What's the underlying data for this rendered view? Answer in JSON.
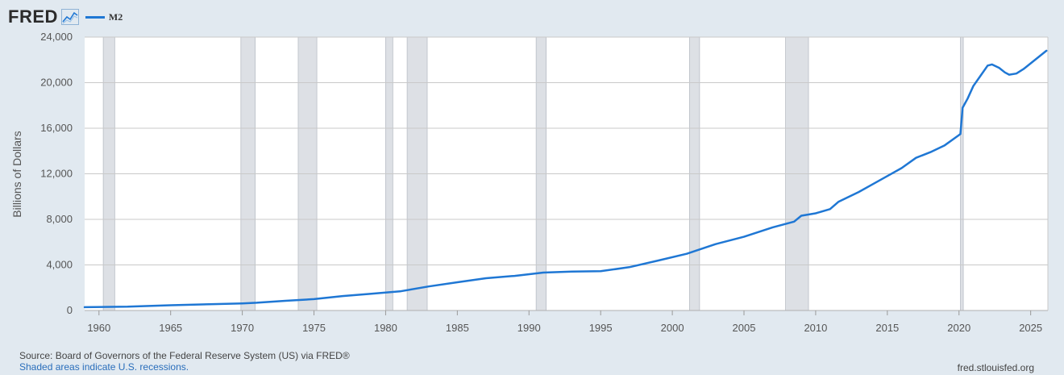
{
  "header": {
    "logo_text": "FRED",
    "logo_icon": "chart-line-icon",
    "legend_label": "M2",
    "legend_color": "#1f77d4"
  },
  "footer": {
    "source": "Source: Board of Governors of the Federal Reserve System (US) via FRED®",
    "note": "Shaded areas indicate U.S. recessions.",
    "site": "fred.stlouisfed.org"
  },
  "chart_data": {
    "type": "line",
    "title": "",
    "xlabel": "",
    "ylabel": "Billions of Dollars",
    "xlim": [
      1959,
      2026.2
    ],
    "ylim": [
      0,
      24000
    ],
    "x_ticks": [
      1960,
      1965,
      1970,
      1975,
      1980,
      1985,
      1990,
      1995,
      2000,
      2005,
      2010,
      2015,
      2020,
      2025
    ],
    "y_ticks": [
      0,
      4000,
      8000,
      12000,
      16000,
      20000,
      24000
    ],
    "y_tick_labels": [
      "0",
      "4,000",
      "8,000",
      "12,000",
      "16,000",
      "20,000",
      "24,000"
    ],
    "grid": true,
    "legend_position": "top-left",
    "line_color": "#1f77d4",
    "recession_color": "#dde0e5",
    "recessions": [
      [
        1960.3,
        1961.1
      ],
      [
        1969.9,
        1970.9
      ],
      [
        1973.9,
        1975.2
      ],
      [
        1980.0,
        1980.5
      ],
      [
        1981.5,
        1982.9
      ],
      [
        1990.5,
        1991.2
      ],
      [
        2001.2,
        2001.9
      ],
      [
        2007.9,
        2009.5
      ],
      [
        2020.1,
        2020.3
      ]
    ],
    "series": [
      {
        "name": "M2",
        "points": [
          [
            1959,
            290
          ],
          [
            1962,
            330
          ],
          [
            1965,
            460
          ],
          [
            1968,
            560
          ],
          [
            1970,
            620
          ],
          [
            1971,
            680
          ],
          [
            1973,
            850
          ],
          [
            1975,
            1000
          ],
          [
            1977,
            1270
          ],
          [
            1979,
            1470
          ],
          [
            1981,
            1680
          ],
          [
            1983,
            2110
          ],
          [
            1985,
            2480
          ],
          [
            1987,
            2830
          ],
          [
            1989,
            3040
          ],
          [
            1991,
            3330
          ],
          [
            1993,
            3420
          ],
          [
            1995,
            3450
          ],
          [
            1997,
            3800
          ],
          [
            1999,
            4380
          ],
          [
            2001,
            4980
          ],
          [
            2003,
            5820
          ],
          [
            2005,
            6470
          ],
          [
            2007,
            7300
          ],
          [
            2008.5,
            7800
          ],
          [
            2009,
            8320
          ],
          [
            2010,
            8530
          ],
          [
            2011,
            8900
          ],
          [
            2011.6,
            9550
          ],
          [
            2013,
            10400
          ],
          [
            2014,
            11100
          ],
          [
            2015,
            11800
          ],
          [
            2016,
            12500
          ],
          [
            2017,
            13400
          ],
          [
            2018,
            13900
          ],
          [
            2019,
            14500
          ],
          [
            2020.0,
            15400
          ],
          [
            2020.1,
            15500
          ],
          [
            2020.25,
            17800
          ],
          [
            2020.6,
            18600
          ],
          [
            2021.0,
            19700
          ],
          [
            2021.5,
            20600
          ],
          [
            2022.0,
            21500
          ],
          [
            2022.3,
            21600
          ],
          [
            2022.8,
            21300
          ],
          [
            2023.2,
            20900
          ],
          [
            2023.5,
            20700
          ],
          [
            2024.0,
            20800
          ],
          [
            2024.5,
            21200
          ],
          [
            2025.0,
            21700
          ],
          [
            2025.5,
            22200
          ],
          [
            2026.1,
            22800
          ]
        ]
      }
    ]
  }
}
